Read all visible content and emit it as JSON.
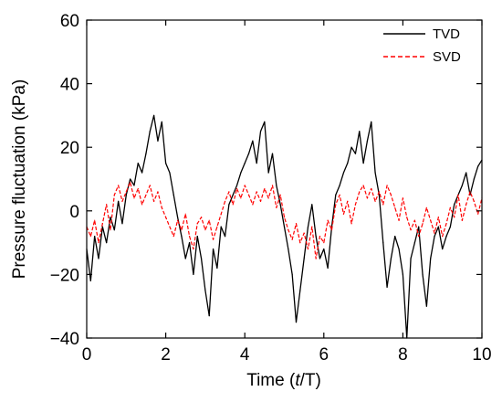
{
  "chart_data": {
    "type": "line",
    "xlabel_prefix": "Time (",
    "xlabel_italic": "t",
    "xlabel_suffix": "/T)",
    "ylabel": "Pressure fluctuation  (kPa)",
    "xlim": [
      0,
      10
    ],
    "ylim": [
      -40,
      60
    ],
    "xticks": [
      0,
      2,
      4,
      6,
      8,
      10
    ],
    "yticks": [
      -40,
      -20,
      0,
      20,
      40,
      60
    ],
    "xtick_labels": [
      "0",
      "2",
      "4",
      "6",
      "8",
      "10"
    ],
    "ytick_labels": [
      "−40",
      "−20",
      "0",
      "20",
      "40",
      "60"
    ],
    "grid": false,
    "legend_position": "top-right",
    "series": [
      {
        "name": "TVD",
        "color": "#000000",
        "style": "solid",
        "x": [
          0.0,
          0.1,
          0.2,
          0.3,
          0.4,
          0.5,
          0.6,
          0.7,
          0.8,
          0.9,
          1.0,
          1.1,
          1.2,
          1.3,
          1.4,
          1.5,
          1.6,
          1.7,
          1.8,
          1.9,
          2.0,
          2.1,
          2.2,
          2.3,
          2.4,
          2.5,
          2.6,
          2.7,
          2.8,
          2.9,
          3.0,
          3.1,
          3.2,
          3.3,
          3.4,
          3.5,
          3.6,
          3.7,
          3.8,
          3.9,
          4.0,
          4.1,
          4.2,
          4.3,
          4.4,
          4.5,
          4.6,
          4.7,
          4.8,
          4.9,
          5.0,
          5.1,
          5.2,
          5.3,
          5.4,
          5.5,
          5.6,
          5.7,
          5.8,
          5.9,
          6.0,
          6.1,
          6.2,
          6.3,
          6.4,
          6.5,
          6.6,
          6.7,
          6.8,
          6.9,
          7.0,
          7.1,
          7.2,
          7.3,
          7.4,
          7.5,
          7.6,
          7.7,
          7.8,
          7.9,
          8.0,
          8.1,
          8.2,
          8.3,
          8.4,
          8.5,
          8.6,
          8.7,
          8.8,
          8.9,
          9.0,
          9.1,
          9.2,
          9.3,
          9.4,
          9.5,
          9.6,
          9.7,
          9.8,
          9.9,
          10.0
        ],
        "y": [
          -12,
          -22,
          -8,
          -15,
          -5,
          -10,
          -2,
          -6,
          3,
          -4,
          5,
          10,
          8,
          15,
          12,
          18,
          25,
          30,
          22,
          28,
          15,
          12,
          5,
          -2,
          -8,
          -15,
          -10,
          -20,
          -8,
          -15,
          -25,
          -33,
          -12,
          -18,
          -5,
          -8,
          2,
          5,
          8,
          12,
          15,
          18,
          22,
          15,
          25,
          28,
          12,
          18,
          8,
          2,
          -5,
          -12,
          -20,
          -35,
          -25,
          -15,
          -5,
          2,
          -8,
          -15,
          -12,
          -18,
          -5,
          5,
          8,
          12,
          15,
          20,
          18,
          25,
          15,
          22,
          28,
          12,
          5,
          -10,
          -24,
          -15,
          -8,
          -12,
          -20,
          -40,
          -15,
          -10,
          -5,
          -20,
          -30,
          -15,
          -8,
          -5,
          -12,
          -8,
          -5,
          2,
          5,
          8,
          12,
          5,
          10,
          14,
          16
        ]
      },
      {
        "name": "SVD",
        "color": "#ff0000",
        "style": "dashed",
        "x": [
          0.0,
          0.1,
          0.2,
          0.3,
          0.4,
          0.5,
          0.6,
          0.7,
          0.8,
          0.9,
          1.0,
          1.1,
          1.2,
          1.3,
          1.4,
          1.5,
          1.6,
          1.7,
          1.8,
          1.9,
          2.0,
          2.1,
          2.2,
          2.3,
          2.4,
          2.5,
          2.6,
          2.7,
          2.8,
          2.9,
          3.0,
          3.1,
          3.2,
          3.3,
          3.4,
          3.5,
          3.6,
          3.7,
          3.8,
          3.9,
          4.0,
          4.1,
          4.2,
          4.3,
          4.4,
          4.5,
          4.6,
          4.7,
          4.8,
          4.9,
          5.0,
          5.1,
          5.2,
          5.3,
          5.4,
          5.5,
          5.6,
          5.7,
          5.8,
          5.9,
          6.0,
          6.1,
          6.2,
          6.3,
          6.4,
          6.5,
          6.6,
          6.7,
          6.8,
          6.9,
          7.0,
          7.1,
          7.2,
          7.3,
          7.4,
          7.5,
          7.6,
          7.7,
          7.8,
          7.9,
          8.0,
          8.1,
          8.2,
          8.3,
          8.4,
          8.5,
          8.6,
          8.7,
          8.8,
          8.9,
          9.0,
          9.1,
          9.2,
          9.3,
          9.4,
          9.5,
          9.6,
          9.7,
          9.8,
          9.9,
          10.0
        ],
        "y": [
          -5,
          -8,
          -3,
          -10,
          -4,
          2,
          -6,
          5,
          8,
          3,
          6,
          9,
          4,
          7,
          2,
          5,
          8,
          3,
          6,
          1,
          -2,
          -5,
          -8,
          -3,
          -6,
          -1,
          -8,
          -12,
          -4,
          -2,
          -6,
          -3,
          -9,
          -5,
          -1,
          3,
          6,
          2,
          7,
          4,
          8,
          5,
          2,
          6,
          3,
          7,
          4,
          8,
          1,
          5,
          -2,
          -6,
          -9,
          -4,
          -10,
          -7,
          -12,
          -5,
          -15,
          -8,
          -10,
          -3,
          -6,
          2,
          5,
          -1,
          3,
          -4,
          2,
          6,
          8,
          4,
          7,
          3,
          6,
          2,
          8,
          5,
          1,
          -3,
          4,
          -2,
          -6,
          -3,
          -8,
          -4,
          1,
          -3,
          -7,
          -2,
          -8,
          -4,
          1,
          -2,
          5,
          -3,
          2,
          6,
          3,
          -1,
          4
        ]
      }
    ]
  }
}
